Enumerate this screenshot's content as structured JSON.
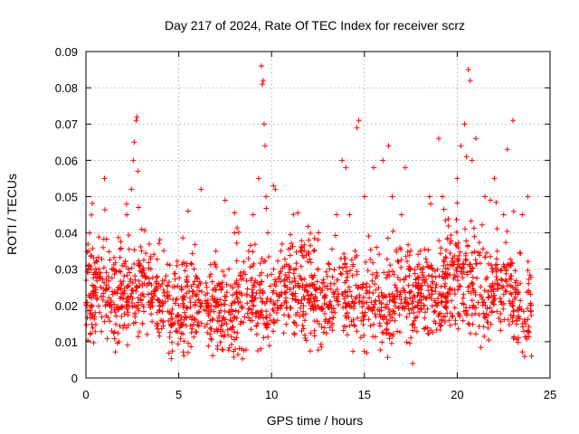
{
  "chart_data": {
    "type": "scatter",
    "title": "Day 217 of 2024, Rate Of TEC Index for receiver scrz",
    "xlabel": "GPS time / hours",
    "ylabel": "ROTI / TECUs",
    "xlim": [
      0,
      25
    ],
    "ylim": [
      0,
      0.09
    ],
    "xticks": [
      0,
      5,
      10,
      15,
      20,
      25
    ],
    "yticks": [
      0,
      0.01,
      0.02,
      0.03,
      0.04,
      0.05,
      0.06,
      0.07,
      0.08,
      0.09
    ],
    "xtick_labels": [
      "0",
      "5",
      "10",
      "15",
      "20",
      "25"
    ],
    "ytick_labels": [
      "0",
      "0.01",
      "0.02",
      "0.03",
      "0.04",
      "0.05",
      "0.06",
      "0.07",
      "0.08",
      "0.09"
    ],
    "grid": true,
    "marker": "+",
    "color": "#ff0000",
    "data_range": [
      0,
      24
    ],
    "series": [
      {
        "name": "ROTI",
        "x": [
          0.05,
          0.15,
          0.3,
          0.5,
          0.7,
          0.8,
          1.0,
          1.2,
          1.5,
          1.8,
          2.2,
          2.45,
          2.55,
          2.6,
          2.7,
          2.75,
          2.8,
          3.0,
          3.2,
          3.5,
          3.8,
          4.0,
          4.5,
          5.0,
          5.2,
          5.5,
          6.0,
          6.2,
          6.5,
          7.0,
          7.5,
          7.7,
          8.0,
          8.5,
          9.0,
          9.3,
          9.45,
          9.5,
          9.55,
          9.6,
          9.65,
          9.7,
          9.8,
          10.1,
          10.2,
          10.5,
          11.0,
          11.5,
          12.0,
          12.5,
          13.0,
          13.5,
          13.8,
          14.0,
          14.2,
          14.5,
          14.6,
          14.7,
          15.0,
          15.5,
          16.0,
          16.3,
          16.5,
          17.0,
          17.2,
          17.6,
          18.0,
          18.5,
          19.0,
          19.2,
          19.5,
          20.0,
          20.2,
          20.4,
          20.5,
          20.6,
          20.7,
          20.8,
          21.0,
          21.5,
          22.0,
          22.5,
          22.7,
          23.0,
          23.5,
          23.8,
          24.0
        ],
        "y": [
          0.02,
          0.035,
          0.022,
          0.018,
          0.03,
          0.025,
          0.055,
          0.028,
          0.03,
          0.025,
          0.045,
          0.052,
          0.06,
          0.065,
          0.071,
          0.072,
          0.057,
          0.035,
          0.028,
          0.03,
          0.015,
          0.02,
          0.018,
          0.02,
          0.022,
          0.046,
          0.025,
          0.052,
          0.02,
          0.035,
          0.049,
          0.03,
          0.04,
          0.032,
          0.045,
          0.055,
          0.086,
          0.081,
          0.082,
          0.07,
          0.064,
          0.05,
          0.04,
          0.053,
          0.052,
          0.035,
          0.03,
          0.025,
          0.038,
          0.03,
          0.028,
          0.045,
          0.06,
          0.058,
          0.045,
          0.035,
          0.069,
          0.071,
          0.05,
          0.058,
          0.06,
          0.064,
          0.05,
          0.045,
          0.058,
          0.004,
          0.035,
          0.05,
          0.066,
          0.05,
          0.03,
          0.055,
          0.064,
          0.07,
          0.061,
          0.085,
          0.082,
          0.06,
          0.066,
          0.05,
          0.055,
          0.045,
          0.063,
          0.071,
          0.045,
          0.05,
          0.006
        ]
      }
    ]
  }
}
